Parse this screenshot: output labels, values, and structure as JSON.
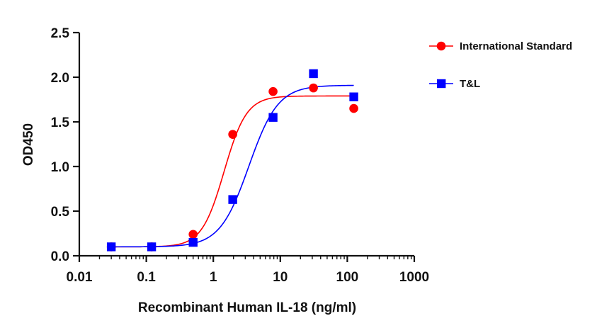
{
  "chart_data": {
    "type": "scatter",
    "title": "",
    "xlabel": "Recombinant Human IL-18 (ng/ml)",
    "ylabel": "OD450",
    "xscale": "log",
    "xlim": [
      0.01,
      1000
    ],
    "ylim": [
      0,
      2.5
    ],
    "x_tick_labels": [
      "0.01",
      "0.1",
      "1",
      "10",
      "100",
      "1000"
    ],
    "x_ticks": [
      0.01,
      0.1,
      1,
      10,
      100,
      1000
    ],
    "y_tick_labels": [
      "0.0",
      "0.5",
      "1.0",
      "1.5",
      "2.0",
      "2.5"
    ],
    "y_ticks": [
      0,
      0.5,
      1.0,
      1.5,
      2.0,
      2.5
    ],
    "grid": false,
    "legend_position": "top-right",
    "series": [
      {
        "name": "International Standard",
        "color": "#ff0000",
        "marker": "circle",
        "x": [
          0.03,
          0.12,
          0.5,
          1.95,
          7.8,
          31.25,
          125
        ],
        "y": [
          0.1,
          0.1,
          0.24,
          1.36,
          1.84,
          1.88,
          1.65
        ],
        "fit": {
          "bottom": 0.1,
          "top": 1.79,
          "ec50": 1.45,
          "hill": 2.6
        }
      },
      {
        "name": "T&L",
        "color": "#0000ff",
        "marker": "square",
        "x": [
          0.03,
          0.12,
          0.5,
          1.95,
          7.8,
          31.25,
          125
        ],
        "y": [
          0.1,
          0.1,
          0.15,
          0.63,
          1.55,
          2.04,
          1.78
        ],
        "fit": {
          "bottom": 0.1,
          "top": 1.91,
          "ec50": 3.4,
          "hill": 2.0
        }
      }
    ]
  }
}
